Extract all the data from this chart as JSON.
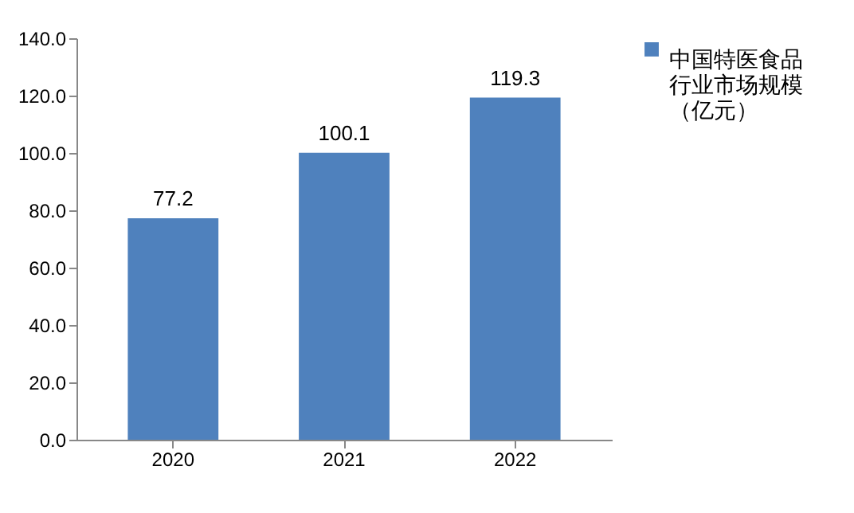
{
  "chart_data": {
    "type": "bar",
    "categories": [
      "2020",
      "2021",
      "2022"
    ],
    "series": [
      {
        "name": "中国特医食品行业市场规模（亿元）",
        "color": "#4f81bd",
        "values": [
          77.2,
          100.1,
          119.3
        ]
      }
    ],
    "ylim": [
      0,
      140
    ],
    "yticks": [
      {
        "value": 0,
        "label": "0.0"
      },
      {
        "value": 20,
        "label": "20.0"
      },
      {
        "value": 40,
        "label": "40.0"
      },
      {
        "value": 60,
        "label": "60.0"
      },
      {
        "value": 80,
        "label": "80.0"
      },
      {
        "value": 100,
        "label": "100.0"
      },
      {
        "value": 120,
        "label": "120.0"
      },
      {
        "value": 140,
        "label": "140.0"
      }
    ],
    "data_labels": true,
    "grid": false,
    "legend": "right"
  }
}
